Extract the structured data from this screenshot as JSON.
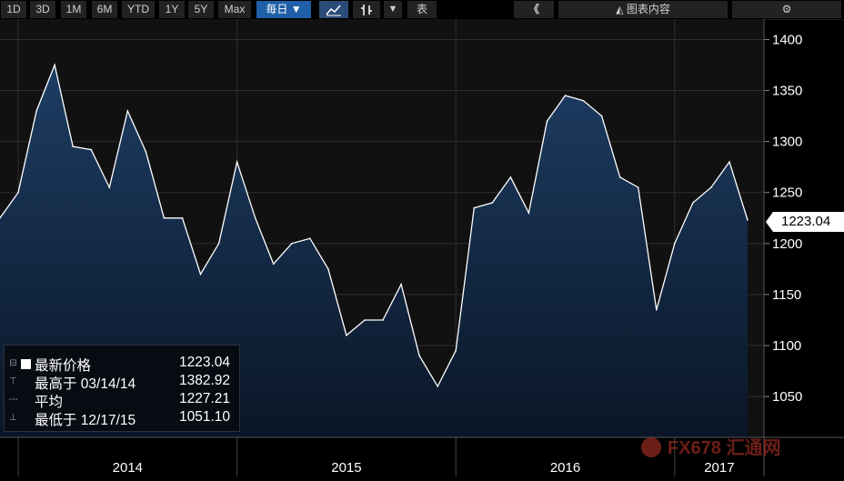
{
  "toolbar": {
    "ranges": [
      "1D",
      "3D",
      "1M",
      "6M",
      "YTD",
      "1Y",
      "5Y",
      "Max"
    ],
    "frequency": "毎日 ▼",
    "dropdown_glyph": "▼",
    "table_label": "表",
    "collapse_glyph": "《",
    "chart_content_label": "图表内容",
    "settings_glyph": "⚙"
  },
  "legend": {
    "rows": [
      {
        "label": "最新价格",
        "value": "1223.04"
      },
      {
        "label": "最高于 03/14/14",
        "value": "1382.92"
      },
      {
        "label": "平均",
        "value": "1227.21"
      },
      {
        "label": "最低于 12/17/15",
        "value": "1051.10"
      }
    ]
  },
  "last_price_badge": "1223.04",
  "watermark": "FX678 汇通网",
  "colors": {
    "background": "#000000",
    "plot_background": "#111111",
    "area_top": "#1d3d63",
    "area_bottom": "#0a1627",
    "line": "#ffffff",
    "active_button": "#1f5fa8"
  },
  "chart_data": {
    "type": "area",
    "title": "",
    "xlabel": "",
    "ylabel": "",
    "x_tick_labels": [
      "2014",
      "2015",
      "2016",
      "2017"
    ],
    "ylim": [
      1010,
      1420
    ],
    "y_ticks": [
      1050,
      1100,
      1150,
      1200,
      1250,
      1300,
      1350,
      1400
    ],
    "grid": true,
    "x": [
      "2013-12",
      "2014-01",
      "2014-02",
      "2014-03",
      "2014-04",
      "2014-05",
      "2014-06",
      "2014-07",
      "2014-08",
      "2014-09",
      "2014-10",
      "2014-11",
      "2014-12",
      "2015-01",
      "2015-02",
      "2015-03",
      "2015-04",
      "2015-05",
      "2015-06",
      "2015-07",
      "2015-08",
      "2015-09",
      "2015-10",
      "2015-11",
      "2015-12",
      "2016-01",
      "2016-02",
      "2016-03",
      "2016-04",
      "2016-05",
      "2016-06",
      "2016-07",
      "2016-08",
      "2016-09",
      "2016-10",
      "2016-11",
      "2016-12",
      "2017-01",
      "2017-02",
      "2017-03",
      "2017-04",
      "2017-05"
    ],
    "series": [
      {
        "values": [
          1225,
          1250,
          1330,
          1375,
          1295,
          1292,
          1255,
          1330,
          1290,
          1225,
          1225,
          1170,
          1200,
          1280,
          1225,
          1180,
          1200,
          1205,
          1175,
          1110,
          1125,
          1125,
          1160,
          1090,
          1060,
          1095,
          1235,
          1240,
          1265,
          1230,
          1320,
          1345,
          1340,
          1325,
          1265,
          1255,
          1135,
          1200,
          1240,
          1255,
          1280,
          1223
        ]
      }
    ]
  }
}
